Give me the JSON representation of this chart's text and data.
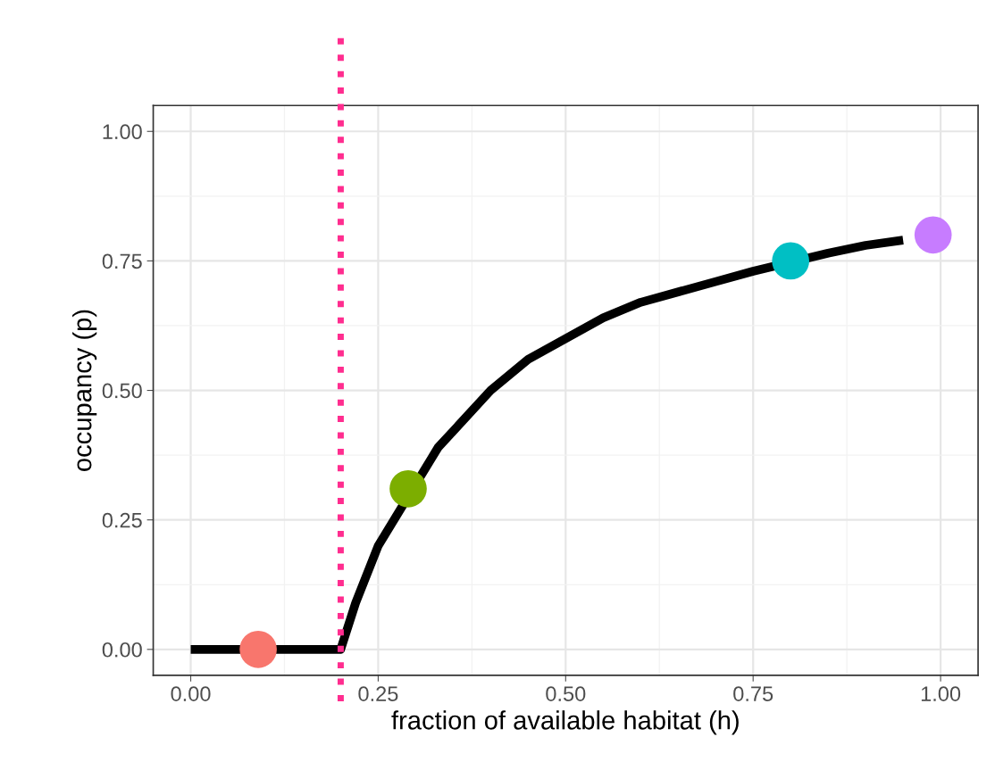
{
  "chart_data": {
    "type": "line",
    "xlabel": "fraction of available habitat (h)",
    "ylabel": "occupancy (p)",
    "xlim": [
      -0.05,
      1.05
    ],
    "ylim": [
      -0.05,
      1.05
    ],
    "xticks": [
      {
        "value": 0,
        "label": "0.00"
      },
      0.25,
      {
        "value": 0.5,
        "label": "0.50"
      },
      0.75,
      {
        "value": 1,
        "label": "1.00"
      }
    ],
    "yticks": [
      {
        "value": 0,
        "label": "0.00"
      },
      0.25,
      {
        "value": 0.5,
        "label": "0.50"
      },
      0.75,
      {
        "value": 1,
        "label": "1.00"
      }
    ],
    "grid": true,
    "legend": false,
    "series": [
      {
        "color": "#000000",
        "x": [
          0,
          0.2,
          0.22,
          0.25,
          0.33,
          0.4,
          0.45,
          0.5,
          0.55,
          0.6,
          0.7,
          0.75,
          0.85,
          0.9,
          0.95
        ],
        "values": [
          0,
          0,
          0.09,
          0.2,
          0.39,
          0.5,
          0.56,
          0.6,
          0.64,
          0.67,
          0.71,
          0.73,
          0.765,
          0.78,
          0.79
        ]
      },
      {
        "type": "scatter",
        "colors": [
          "#f8766d",
          "#7cae00",
          "#00bfc4",
          "#c77cff"
        ],
        "x": [
          0.09,
          0.29,
          0.8,
          0.99
        ],
        "values": [
          0,
          0.31,
          0.75,
          0.8
        ],
        "marker": "circle"
      }
    ],
    "ref_lines": [
      {
        "axis": "x",
        "value": 0.2,
        "color": "#ff2d8f",
        "line_style": "dotted"
      }
    ]
  }
}
